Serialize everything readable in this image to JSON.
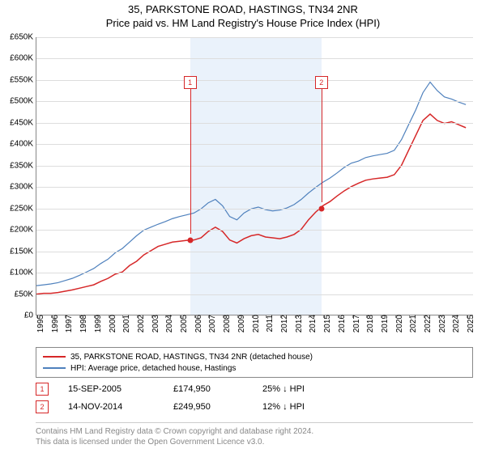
{
  "title_line1": "35, PARKSTONE ROAD, HASTINGS, TN34 2NR",
  "title_line2": "Price paid vs. HM Land Registry's House Price Index (HPI)",
  "chart": {
    "type": "line",
    "x_years": [
      1995,
      1996,
      1997,
      1998,
      1999,
      2000,
      2001,
      2002,
      2003,
      2004,
      2005,
      2006,
      2007,
      2008,
      2009,
      2010,
      2011,
      2012,
      2013,
      2014,
      2015,
      2016,
      2017,
      2018,
      2019,
      2020,
      2021,
      2022,
      2023,
      2024,
      2025
    ],
    "xlim": [
      1995,
      2025.5
    ],
    "ylim": [
      0,
      650000
    ],
    "ytick_step": 50000,
    "ytick_labels": [
      "£0",
      "£50K",
      "£100K",
      "£150K",
      "£200K",
      "£250K",
      "£300K",
      "£350K",
      "£400K",
      "£450K",
      "£500K",
      "£550K",
      "£600K",
      "£650K"
    ],
    "grid_color": "#dddddd",
    "shade_color": "#eaf2fb",
    "shade_start_year": 2005.71,
    "shade_end_year": 2014.87,
    "series": [
      {
        "name": "property",
        "label": "35, PARKSTONE ROAD, HASTINGS, TN34 2NR (detached house)",
        "color": "#d62728",
        "width": 1.5,
        "values_by_year": {
          "1995": 48000,
          "1995.5": 50000,
          "1996": 50000,
          "1996.5": 52000,
          "1997": 55000,
          "1997.5": 58000,
          "1998": 62000,
          "1998.5": 66000,
          "1999": 70000,
          "1999.5": 78000,
          "2000": 85000,
          "2000.5": 95000,
          "2001": 100000,
          "2001.5": 115000,
          "2002": 125000,
          "2002.5": 140000,
          "2003": 150000,
          "2003.5": 160000,
          "2004": 165000,
          "2004.5": 170000,
          "2005": 172000,
          "2005.5": 174000,
          "2006": 175000,
          "2006.5": 180000,
          "2007": 195000,
          "2007.5": 205000,
          "2008": 195000,
          "2008.5": 175000,
          "2009": 168000,
          "2009.5": 178000,
          "2010": 185000,
          "2010.5": 188000,
          "2011": 182000,
          "2011.5": 180000,
          "2012": 178000,
          "2012.5": 182000,
          "2013": 188000,
          "2013.5": 200000,
          "2014": 222000,
          "2014.5": 240000,
          "2015": 255000,
          "2015.5": 265000,
          "2016": 278000,
          "2016.5": 290000,
          "2017": 300000,
          "2017.5": 308000,
          "2018": 315000,
          "2018.5": 318000,
          "2019": 320000,
          "2019.5": 322000,
          "2020": 328000,
          "2020.5": 350000,
          "2021": 385000,
          "2021.5": 420000,
          "2022": 455000,
          "2022.5": 470000,
          "2023": 455000,
          "2023.5": 448000,
          "2024": 452000,
          "2024.5": 445000,
          "2025": 438000
        }
      },
      {
        "name": "hpi",
        "label": "HPI: Average price, detached house, Hastings",
        "color": "#4f81bd",
        "width": 1.2,
        "values_by_year": {
          "1995": 68000,
          "1995.5": 70000,
          "1996": 72000,
          "1996.5": 75000,
          "1997": 80000,
          "1997.5": 85000,
          "1998": 92000,
          "1998.5": 100000,
          "1999": 108000,
          "1999.5": 120000,
          "2000": 130000,
          "2000.5": 145000,
          "2001": 155000,
          "2001.5": 170000,
          "2002": 185000,
          "2002.5": 198000,
          "2003": 205000,
          "2003.5": 212000,
          "2004": 218000,
          "2004.5": 225000,
          "2005": 230000,
          "2005.5": 234000,
          "2006": 238000,
          "2006.5": 248000,
          "2007": 262000,
          "2007.5": 270000,
          "2008": 255000,
          "2008.5": 230000,
          "2009": 222000,
          "2009.5": 238000,
          "2010": 248000,
          "2010.5": 252000,
          "2011": 246000,
          "2011.5": 243000,
          "2012": 245000,
          "2012.5": 250000,
          "2013": 258000,
          "2013.5": 270000,
          "2014": 285000,
          "2014.5": 298000,
          "2015": 310000,
          "2015.5": 320000,
          "2016": 332000,
          "2016.5": 345000,
          "2017": 355000,
          "2017.5": 360000,
          "2018": 368000,
          "2018.5": 372000,
          "2019": 375000,
          "2019.5": 378000,
          "2020": 385000,
          "2020.5": 410000,
          "2021": 445000,
          "2021.5": 480000,
          "2022": 520000,
          "2022.5": 545000,
          "2023": 525000,
          "2023.5": 510000,
          "2024": 505000,
          "2024.5": 498000,
          "2025": 492000
        }
      }
    ],
    "sale_markers": [
      {
        "year": 2005.71,
        "value": 174950,
        "color": "#d62728"
      },
      {
        "year": 2014.87,
        "value": 249950,
        "color": "#d62728"
      }
    ],
    "event_labels": [
      {
        "n": "1",
        "year": 2005.71,
        "box_top_y": 560000,
        "line_to_y": 190000
      },
      {
        "n": "2",
        "year": 2014.87,
        "box_top_y": 560000,
        "line_to_y": 265000
      }
    ]
  },
  "legend": {
    "items": [
      {
        "color": "#d62728",
        "label": "35, PARKSTONE ROAD, HASTINGS, TN34 2NR (detached house)"
      },
      {
        "color": "#4f81bd",
        "label": "HPI: Average price, detached house, Hastings"
      }
    ]
  },
  "events": [
    {
      "n": "1",
      "date": "15-SEP-2005",
      "price": "£174,950",
      "pct": "25% ↓ HPI"
    },
    {
      "n": "2",
      "date": "14-NOV-2014",
      "price": "£249,950",
      "pct": "12% ↓ HPI"
    }
  ],
  "attribution": {
    "line1": "Contains HM Land Registry data © Crown copyright and database right 2024.",
    "line2": "This data is licensed under the Open Government Licence v3.0."
  }
}
